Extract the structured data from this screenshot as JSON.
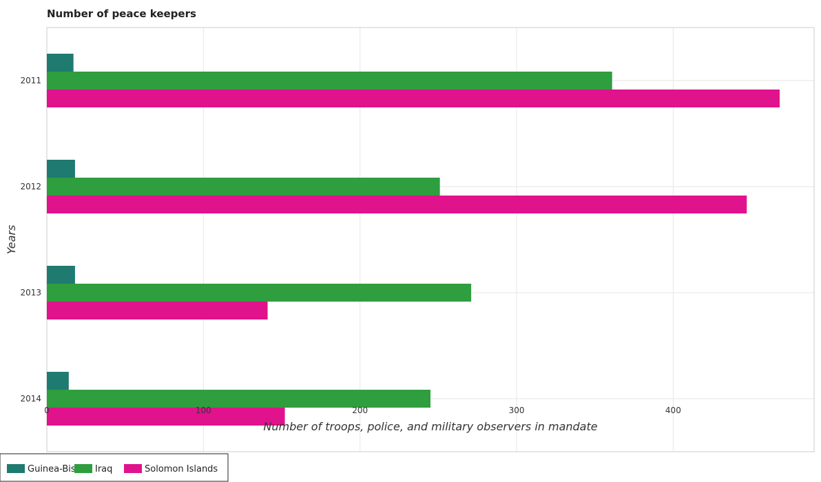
{
  "chart_data": {
    "type": "bar",
    "orientation": "horizontal",
    "title": "Number of peace keepers",
    "xlabel": "Number of troops, police, and military observers in mandate",
    "ylabel": "Years",
    "categories": [
      "2011",
      "2012",
      "2013",
      "2014"
    ],
    "series": [
      {
        "name": "Guinea-Bissau",
        "color": "#1f7a70",
        "values": [
          17,
          18,
          18,
          14
        ]
      },
      {
        "name": "Iraq",
        "color": "#2e9e3e",
        "values": [
          361,
          251,
          271,
          245
        ]
      },
      {
        "name": "Solomon Islands",
        "color": "#e0128c",
        "values": [
          468,
          447,
          141,
          152
        ]
      }
    ],
    "xlim": [
      0,
      490
    ],
    "xticks": [
      0,
      100,
      200,
      300,
      400
    ],
    "grid": true,
    "legend_position": "bottom-left"
  }
}
